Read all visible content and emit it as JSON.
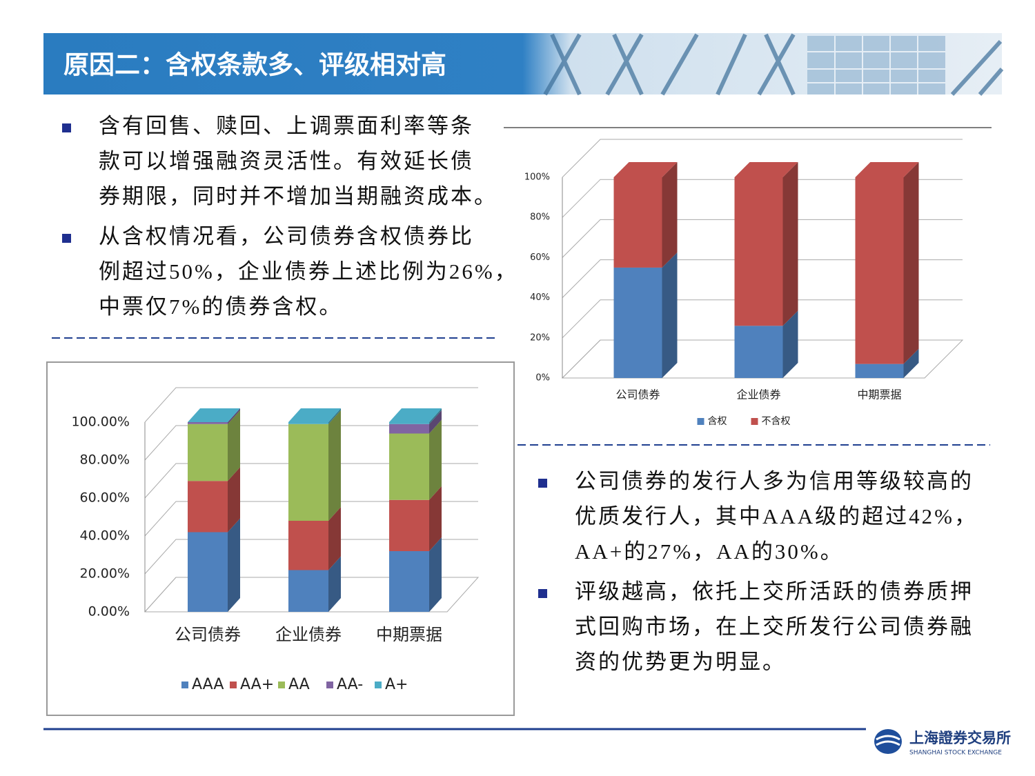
{
  "header": {
    "title": "原因二：含权条款多、评级相对高"
  },
  "bullets_left": [
    [
      "含有回售、赎回、上调票面利率等条",
      "款可以增强融资灵活性。有效延长债",
      "券期限，同时并不增加当期融资成本。"
    ],
    [
      "从含权情况看，公司债券含权债券比",
      "例超过50%，企业债券上述比例为26%，",
      "中票仅7%的债券含权。"
    ]
  ],
  "bullets_right": [
    [
      "公司债券的发行人多为信用等级较高的",
      "优质发行人，其中AAA级的超过42%，",
      "AA+的27%，AA的30%。"
    ],
    [
      "评级越高，依托上交所活跃的债券质押",
      "式回购市场，在上交所发行公司债券融",
      "资的优势更为明显。"
    ]
  ],
  "logo": {
    "name": "上海證券交易所",
    "english": "SHANGHAI STOCK EXCHANGE"
  },
  "chart_data": [
    {
      "type": "bar",
      "stacked": true,
      "categories": [
        "公司债券",
        "企业债券",
        "中期票据"
      ],
      "series": [
        {
          "name": "含权",
          "color": "#4f81bd",
          "values": [
            55,
            26,
            7
          ]
        },
        {
          "name": "不含权",
          "color": "#c0504d",
          "values": [
            45,
            74,
            93
          ]
        }
      ],
      "ylim": [
        0,
        100
      ],
      "yticks": [
        {
          "value": 0,
          "label": "0%"
        },
        {
          "value": 20,
          "label": "20%"
        },
        {
          "value": 40,
          "label": "40%"
        },
        {
          "value": 60,
          "label": "60%"
        },
        {
          "value": 80,
          "label": "80%"
        },
        {
          "value": 100,
          "label": "100%"
        }
      ],
      "grid": true,
      "legend": "bottom"
    },
    {
      "type": "bar",
      "stacked": true,
      "categories": [
        "公司债券",
        "企业债券",
        "中期票据"
      ],
      "series": [
        {
          "name": "AAA",
          "color": "#4f81bd",
          "values": [
            42,
            22,
            32
          ]
        },
        {
          "name": "AA+",
          "color": "#c0504d",
          "values": [
            27,
            26,
            27
          ]
        },
        {
          "name": "AA",
          "color": "#9bbb59",
          "values": [
            30,
            51,
            35
          ]
        },
        {
          "name": "AA-",
          "color": "#8064a2",
          "values": [
            1,
            0,
            5
          ]
        },
        {
          "name": "A+",
          "color": "#4bacc6",
          "values": [
            0,
            1,
            1
          ]
        }
      ],
      "ylim": [
        0,
        100
      ],
      "yticks": [
        {
          "value": 0,
          "label": "0.00%"
        },
        {
          "value": 20,
          "label": "20.00%"
        },
        {
          "value": 40,
          "label": "40.00%"
        },
        {
          "value": 60,
          "label": "60.00%"
        },
        {
          "value": 80,
          "label": "80.00%"
        },
        {
          "value": 100,
          "label": "100.00%"
        }
      ],
      "grid": true,
      "legend": "bottom"
    }
  ]
}
